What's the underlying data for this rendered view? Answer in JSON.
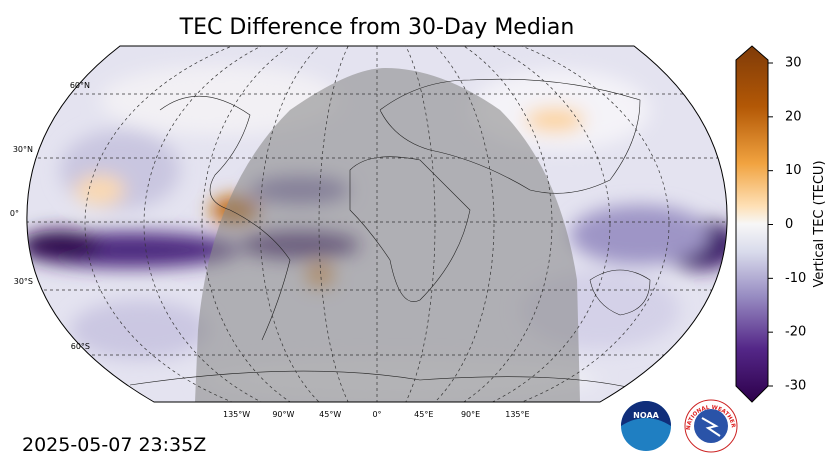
{
  "title": "TEC Difference from 30-Day Median",
  "map": {
    "lat_labels": [
      "60°N",
      "30°N",
      "0°",
      "30°S",
      "60°S"
    ],
    "lon_labels": [
      "135°W",
      "90°W",
      "45°W",
      "0°",
      "45°E",
      "90°E",
      "135°E"
    ]
  },
  "colorbar": {
    "label": "Vertical TEC (TECU)",
    "lim": [
      -30,
      30
    ],
    "ticks": [
      -30,
      -20,
      -10,
      0,
      10,
      20,
      30
    ]
  },
  "timestamp": "2025-05-07 23:35Z",
  "logos": [
    "NOAA",
    "NATIONAL WEATHER SERVICE"
  ]
}
